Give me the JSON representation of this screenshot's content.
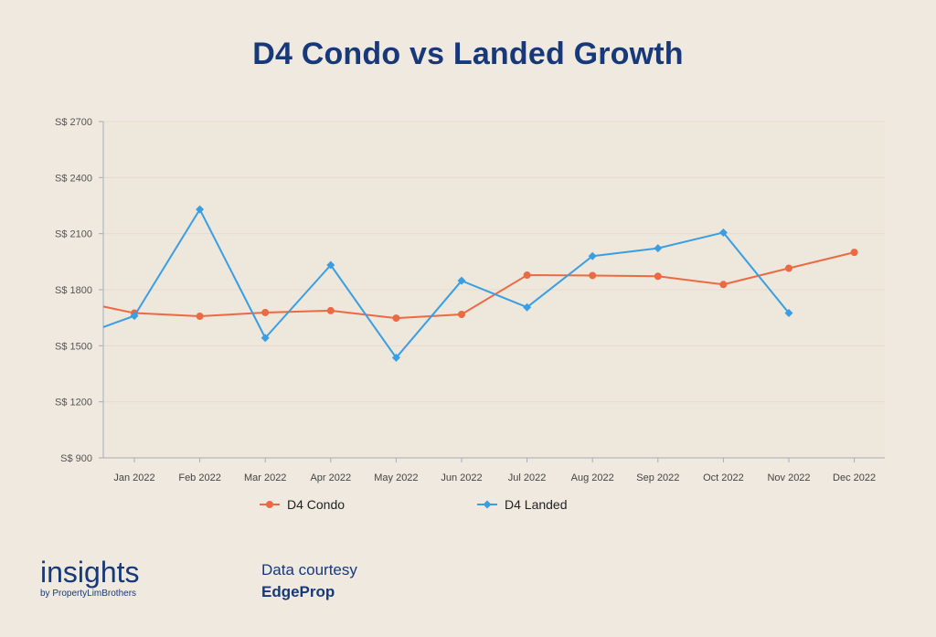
{
  "header": {
    "title": "D4 Condo vs Landed Growth"
  },
  "chart_data": {
    "type": "line",
    "title": "D4 Condo vs Landed Growth",
    "categories": [
      "Jan 2022",
      "Feb 2022",
      "Mar 2022",
      "Apr 2022",
      "May 2022",
      "Jun 2022",
      "Jul 2022",
      "Aug 2022",
      "Sep 2022",
      "Oct 2022",
      "Nov 2022",
      "Dec 2022"
    ],
    "y_ticks": [
      "S$ 900",
      "S$ 1200",
      "S$ 1500",
      "S$ 1800",
      "S$ 2100",
      "S$ 2400",
      "S$ 2700"
    ],
    "ylim": [
      900,
      2700
    ],
    "grid": true,
    "legend_position": "bottom",
    "series": [
      {
        "name": "D4 Condo",
        "color": "#ec6a43",
        "marker": "circle",
        "left_edge_value": 1710,
        "values": [
          1675,
          1658,
          1678,
          1688,
          1648,
          1668,
          1878,
          1876,
          1872,
          1828,
          1915,
          2000
        ]
      },
      {
        "name": "D4 Landed",
        "color": "#3a9ee3",
        "marker": "diamond",
        "left_edge_value": 1600,
        "values": [
          1660,
          2230,
          1542,
          1932,
          1436,
          1848,
          1706,
          1980,
          2022,
          2106,
          1675,
          null
        ]
      }
    ]
  },
  "legend": {
    "items": [
      "D4 Condo",
      "D4 Landed"
    ]
  },
  "footer": {
    "brand_main": "insights",
    "brand_sub": "by PropertyLimBrothers",
    "credit_line1": "Data courtesy",
    "credit_line2": "EdgeProp"
  }
}
